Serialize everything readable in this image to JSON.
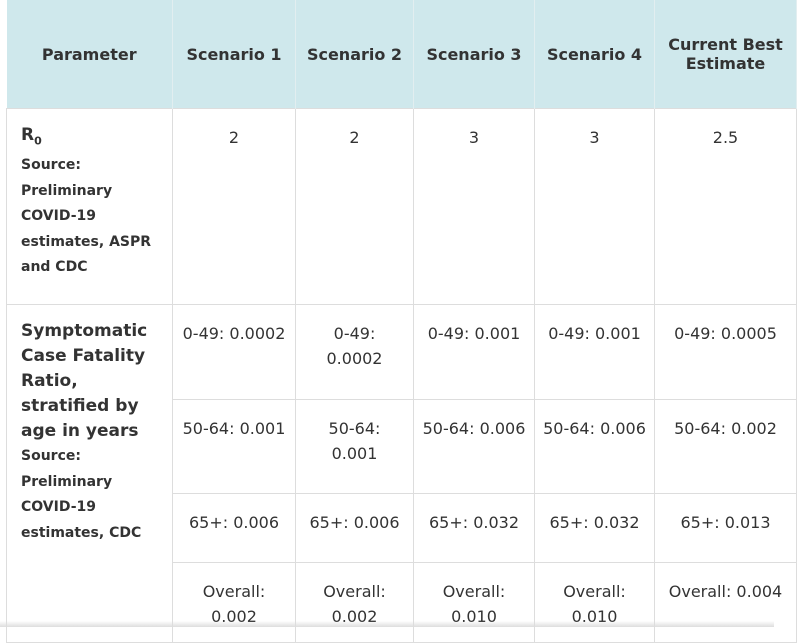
{
  "header": [
    "Parameter",
    "Scenario 1",
    "Scenario 2",
    "Scenario 3",
    "Scenario 4",
    "Current Best Estimate"
  ],
  "rows": [
    {
      "name": "R",
      "name_sub": "0",
      "source_label": "Source:",
      "source": "Preliminary COVID-19 estimates, ASPR and CDC",
      "values": [
        [
          2,
          2,
          3,
          3,
          2.5
        ]
      ]
    },
    {
      "name": "Symptomatic Case Fatality Ratio, stratified by age in years",
      "source_label": "Source:",
      "source": "Preliminary COVID-19 estimates, CDC",
      "values": [
        [
          "0-49: 0.0002",
          "0-49: 0.0002",
          "0-49: 0.001",
          "0-49: 0.001",
          "0-49: 0.0005"
        ],
        [
          "50-64: 0.001",
          "50-64: 0.001",
          "50-64: 0.006",
          "50-64: 0.006",
          "50-64: 0.002"
        ],
        [
          "65+: 0.006",
          "65+: 0.006",
          "65+: 0.032",
          "65+: 0.032",
          "65+: 0.013"
        ],
        [
          "Overall: 0.002",
          "Overall: 0.002",
          "Overall: 0.010",
          "Overall: 0.010",
          "Overall: 0.004"
        ]
      ]
    }
  ]
}
